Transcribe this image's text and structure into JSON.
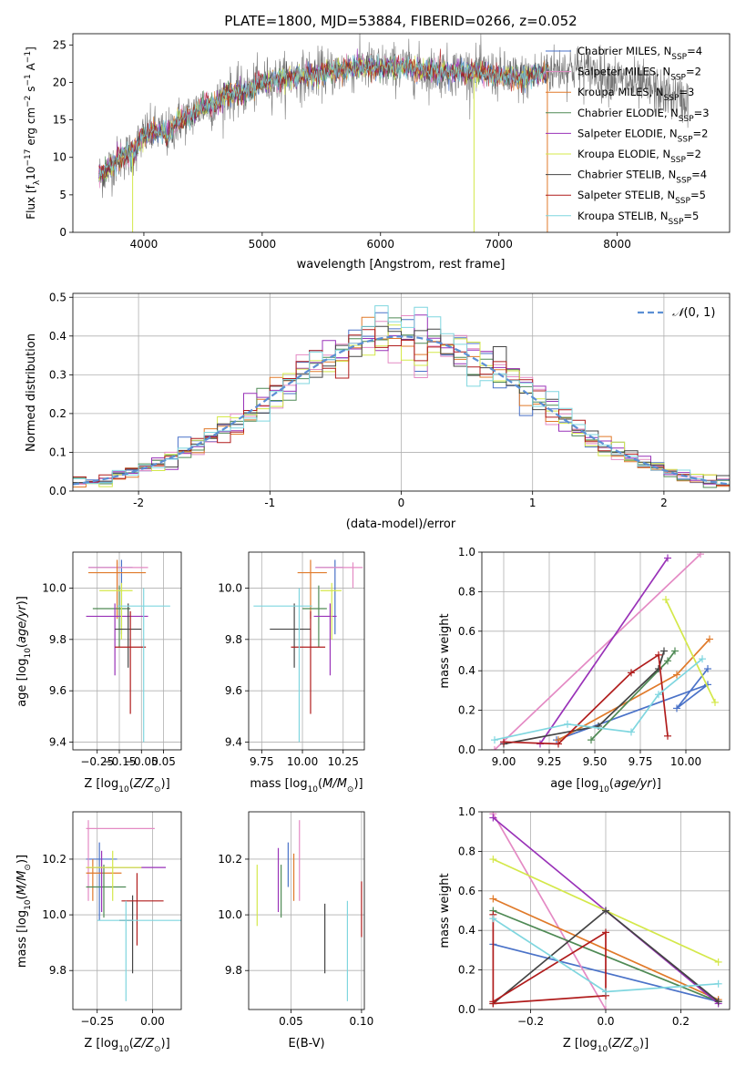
{
  "figure_title": "PLATE=1800, MJD=53884, FIBERID=0266, z=0.052",
  "models": [
    {
      "name": "Chabrier MILES, N$_{SSP}$=4",
      "label_main": "Chabrier MILES, N",
      "label_sub": "SSP",
      "label_tail": "=4",
      "color": "#4a72c8"
    },
    {
      "name": "Salpeter MILES, N$_{SSP}$=2",
      "label_main": "Salpeter MILES, N",
      "label_sub": "SSP",
      "label_tail": "=2",
      "color": "#e48ac4"
    },
    {
      "name": "Kroupa MILES, N$_{SSP}$=3",
      "label_main": "Kroupa MILES, N",
      "label_sub": "SSP",
      "label_tail": "=3",
      "color": "#e07a2a"
    },
    {
      "name": "Chabrier ELODIE, N$_{SSP}$=3",
      "label_main": "Chabrier ELODIE, N",
      "label_sub": "SSP",
      "label_tail": "=3",
      "color": "#4f8a55"
    },
    {
      "name": "Salpeter ELODIE, N$_{SSP}$=2",
      "label_main": "Salpeter ELODIE, N",
      "label_sub": "SSP",
      "label_tail": "=2",
      "color": "#9932b8"
    },
    {
      "name": "Kroupa ELODIE, N$_{SSP}$=2",
      "label_main": "Kroupa ELODIE, N",
      "label_sub": "SSP",
      "label_tail": "=2",
      "color": "#d4e84a"
    },
    {
      "name": "Chabrier STELIB, N$_{SSP}$=4",
      "label_main": "Chabrier STELIB, N",
      "label_sub": "SSP",
      "label_tail": "=4",
      "color": "#444444"
    },
    {
      "name": "Salpeter STELIB, N$_{SSP}$=5",
      "label_main": "Salpeter STELIB, N",
      "label_sub": "SSP",
      "label_tail": "=5",
      "color": "#b01c1c"
    },
    {
      "name": "Kroupa STELIB, N$_{SSP}$=5",
      "label_main": "Kroupa STELIB, N",
      "label_sub": "SSP",
      "label_tail": "=5",
      "color": "#7fd6df"
    }
  ],
  "chart_data": [
    {
      "id": "spectrum",
      "type": "line",
      "title": "PLATE=1800, MJD=53884, FIBERID=0266, z=0.052",
      "xlabel": "wavelength [Angstrom, rest frame]",
      "ylabel_main": "Flux [f",
      "ylabel_tail": "10 erg cm s A ]",
      "xlim": [
        3400,
        8950
      ],
      "ylim": [
        0,
        26.5
      ],
      "xticks": [
        4000,
        5000,
        6000,
        7000,
        8000
      ],
      "yticks": [
        0,
        5,
        10,
        15,
        20,
        25
      ],
      "grid": false,
      "legend_position": "right",
      "data_color": "#777777",
      "continuum": {
        "x": [
          3620,
          3700,
          3800,
          3900,
          4000,
          4100,
          4200,
          4300,
          4400,
          4500,
          4600,
          4700,
          4800,
          4900,
          5000,
          5200,
          5400,
          5600,
          5800,
          6000,
          6200,
          6400,
          6600,
          6800,
          7000,
          7200,
          7400,
          7600,
          7800,
          8000,
          8200,
          8400,
          8600
        ],
        "y": [
          7.5,
          8.5,
          10.0,
          10.5,
          13.0,
          13.5,
          13.0,
          15.0,
          15.5,
          17.0,
          17.0,
          18.5,
          18.5,
          19.0,
          20.0,
          20.5,
          21.0,
          21.5,
          22.0,
          22.0,
          22.0,
          21.5,
          21.5,
          21.5,
          21.0,
          20.5,
          21.5,
          22.0,
          21.5,
          20.5,
          19.5,
          18.5,
          17.5
        ]
      },
      "data_range": [
        3620,
        8600
      ],
      "model_range": [
        3620,
        7420
      ]
    },
    {
      "id": "residual_hist",
      "type": "step",
      "xlabel": "(data-model)/error",
      "ylabel": "Normed distribution",
      "xlim": [
        -2.5,
        2.5
      ],
      "ylim": [
        0,
        0.51
      ],
      "xticks": [
        -2,
        -1,
        0,
        1,
        2
      ],
      "yticks": [
        0.0,
        0.1,
        0.2,
        0.3,
        0.4,
        0.5
      ],
      "grid": true,
      "legend": "$\\mathcal{N}(0,1)$",
      "legend_position": "top-right",
      "normal_color": "#5b8fd4",
      "bin_width": 0.1
    },
    {
      "id": "age_vs_Z",
      "type": "errorbar",
      "xlabel": "Z [log$_{10}$($Z/Z_\\odot$)]",
      "ylabel": "age [log$_{10}$($age/yr$)]",
      "xlim": [
        -0.36,
        0.13
      ],
      "ylim": [
        9.37,
        10.14
      ],
      "xticks": [
        -0.25,
        -0.15,
        -0.05,
        0.05
      ],
      "xtick_labels": [
        "−0.25",
        "−0.15",
        "−0.05",
        "0.05"
      ],
      "yticks": [
        9.4,
        9.6,
        9.8,
        10.0
      ],
      "grid": true,
      "points": [
        {
          "x": -0.14,
          "xerr": [
            0.15,
            0.05
          ],
          "y": 10.08,
          "yerr": [
            0.26,
            0.03
          ]
        },
        {
          "x": -0.16,
          "xerr": [
            0.13,
            0.14
          ],
          "y": 10.08,
          "yerr": [
            0.08,
            0.02
          ]
        },
        {
          "x": -0.16,
          "xerr": [
            0.13,
            0.13
          ],
          "y": 10.06,
          "yerr": [
            0.18,
            0.05
          ]
        },
        {
          "x": -0.15,
          "xerr": [
            0.12,
            0.05
          ],
          "y": 9.92,
          "yerr": [
            0.15,
            0.09
          ]
        },
        {
          "x": -0.17,
          "xerr": [
            0.13,
            0.15
          ],
          "y": 9.89,
          "yerr": [
            0.23,
            0.05
          ]
        },
        {
          "x": -0.14,
          "xerr": [
            0.1,
            0.05
          ],
          "y": 9.99,
          "yerr": [
            0.19,
            0.03
          ]
        },
        {
          "x": -0.11,
          "xerr": [
            0.06,
            0.06
          ],
          "y": 9.84,
          "yerr": [
            0.15,
            0.1
          ]
        },
        {
          "x": -0.1,
          "xerr": [
            0.07,
            0.07
          ],
          "y": 9.77,
          "yerr": [
            0.26,
            0.14
          ]
        },
        {
          "x": -0.04,
          "xerr": [
            0.12,
            0.12
          ],
          "y": 9.93,
          "yerr": [
            0.53,
            0.07
          ]
        }
      ]
    },
    {
      "id": "age_vs_mass",
      "type": "errorbar",
      "xlabel": "mass [log$_{10}$($M/M_\\odot$)]",
      "xlim": [
        9.67,
        10.38
      ],
      "ylim": [
        9.37,
        10.14
      ],
      "xticks": [
        9.75,
        10.0,
        10.25
      ],
      "xtick_labels": [
        "9.75",
        "10.00",
        "10.25"
      ],
      "yticks": [
        9.4,
        9.6,
        9.8,
        10.0
      ],
      "grid": true,
      "points": [
        {
          "x": 10.2,
          "xerr": [
            0.12,
            0.05
          ],
          "y": 10.08,
          "yerr": [
            0.26,
            0.03
          ]
        },
        {
          "x": 10.31,
          "xerr": [
            0.23,
            0.06
          ],
          "y": 10.08,
          "yerr": [
            0.08,
            0.02
          ]
        },
        {
          "x": 10.05,
          "xerr": [
            0.08,
            0.1
          ],
          "y": 10.06,
          "yerr": [
            0.18,
            0.05
          ]
        },
        {
          "x": 10.1,
          "xerr": [
            0.1,
            0.05
          ],
          "y": 9.92,
          "yerr": [
            0.15,
            0.09
          ]
        },
        {
          "x": 10.17,
          "xerr": [
            0.1,
            0.04
          ],
          "y": 9.89,
          "yerr": [
            0.23,
            0.05
          ]
        },
        {
          "x": 10.18,
          "xerr": [
            0.07,
            0.06
          ],
          "y": 9.99,
          "yerr": [
            0.19,
            0.03
          ]
        },
        {
          "x": 9.95,
          "xerr": [
            0.15,
            0.1
          ],
          "y": 9.84,
          "yerr": [
            0.15,
            0.1
          ]
        },
        {
          "x": 10.05,
          "xerr": [
            0.12,
            0.09
          ],
          "y": 9.77,
          "yerr": [
            0.26,
            0.14
          ]
        },
        {
          "x": 9.98,
          "xerr": [
            0.28,
            0.08
          ],
          "y": 9.93,
          "yerr": [
            0.53,
            0.07
          ]
        }
      ]
    },
    {
      "id": "weight_vs_age",
      "type": "line",
      "xlabel": "age [log$_{10}$($age/yr$)]",
      "ylabel": "mass weight",
      "xlim": [
        8.88,
        10.24
      ],
      "ylim": [
        0,
        1.0
      ],
      "xticks": [
        9.0,
        9.25,
        9.5,
        9.75,
        10.0
      ],
      "xtick_labels": [
        "9.00",
        "9.25",
        "9.50",
        "9.75",
        "10.00"
      ],
      "yticks": [
        0.0,
        0.2,
        0.4,
        0.6,
        0.8,
        1.0
      ],
      "grid": true,
      "series": [
        {
          "x": [
            9.29,
            10.12,
            9.95,
            10.12
          ],
          "y": [
            0.05,
            0.33,
            0.21,
            0.41
          ]
        },
        {
          "x": [
            8.95,
            10.08
          ],
          "y": [
            0.0,
            0.99
          ]
        },
        {
          "x": [
            9.3,
            9.95,
            10.13
          ],
          "y": [
            0.05,
            0.38,
            0.56
          ]
        },
        {
          "x": [
            9.48,
            9.9,
            9.94
          ],
          "y": [
            0.05,
            0.45,
            0.5
          ]
        },
        {
          "x": [
            9.2,
            9.9
          ],
          "y": [
            0.03,
            0.97
          ]
        },
        {
          "x": [
            9.89,
            10.16
          ],
          "y": [
            0.76,
            0.24
          ]
        },
        {
          "x": [
            9.0,
            9.52,
            9.85,
            9.88
          ],
          "y": [
            0.03,
            0.12,
            0.41,
            0.5
          ]
        },
        {
          "x": [
            9.0,
            9.3,
            9.7,
            9.85,
            9.9
          ],
          "y": [
            0.04,
            0.03,
            0.39,
            0.48,
            0.07
          ]
        },
        {
          "x": [
            8.95,
            9.35,
            9.7,
            9.85,
            10.09
          ],
          "y": [
            0.05,
            0.13,
            0.09,
            0.28,
            0.46
          ]
        }
      ]
    },
    {
      "id": "mass_vs_Z",
      "type": "errorbar",
      "xlabel": "Z [log$_{10}$($Z/Z_\\odot$)]",
      "ylabel": "mass [log$_{10}$($M/M_\\odot$)]",
      "xlim": [
        -0.36,
        0.13
      ],
      "ylim": [
        9.66,
        10.37
      ],
      "xticks": [
        -0.25,
        0.0
      ],
      "xtick_labels": [
        "−0.25",
        "0.00"
      ],
      "yticks": [
        9.8,
        10.0,
        10.2
      ],
      "grid": true,
      "points": [
        {
          "x": -0.24,
          "xerr": [
            0.06,
            0.08
          ],
          "y": 10.2,
          "yerr": [
            0.22,
            0.06
          ]
        },
        {
          "x": -0.29,
          "xerr": [
            0.01,
            0.3
          ],
          "y": 10.31,
          "yerr": [
            0.26,
            0.03
          ]
        },
        {
          "x": -0.27,
          "xerr": [
            0.03,
            0.13
          ],
          "y": 10.15,
          "yerr": [
            0.1,
            0.05
          ]
        },
        {
          "x": -0.22,
          "xerr": [
            0.08,
            0.1
          ],
          "y": 10.1,
          "yerr": [
            0.11,
            0.08
          ]
        },
        {
          "x": -0.23,
          "xerr": [
            0.07,
            0.29
          ],
          "y": 10.17,
          "yerr": [
            0.16,
            0.06
          ]
        },
        {
          "x": -0.18,
          "xerr": [
            0.12,
            0.13
          ],
          "y": 10.17,
          "yerr": [
            0.12,
            0.06
          ]
        },
        {
          "x": -0.09,
          "xerr": [
            0.06,
            0.0
          ],
          "y": 9.98,
          "yerr": [
            0.19,
            0.09
          ]
        },
        {
          "x": -0.07,
          "xerr": [
            0.07,
            0.12
          ],
          "y": 10.05,
          "yerr": [
            0.16,
            0.1
          ]
        },
        {
          "x": -0.12,
          "xerr": [
            0.13,
            0.25
          ],
          "y": 9.98,
          "yerr": [
            0.29,
            0.07
          ]
        }
      ]
    },
    {
      "id": "mass_vs_ebv",
      "type": "errorbar",
      "xlabel": "E(B-V)",
      "xlim": [
        0.02,
        0.102
      ],
      "ylim": [
        9.66,
        10.37
      ],
      "xticks": [
        0.05,
        0.1
      ],
      "xtick_labels": [
        "0.05",
        "0.10"
      ],
      "yticks": [
        9.8,
        10.0,
        10.2
      ],
      "grid": true,
      "points": [
        {
          "x": 0.048,
          "y": 10.2,
          "yerr": [
            0.1,
            0.06
          ]
        },
        {
          "x": 0.056,
          "y": 10.31,
          "yerr": [
            0.26,
            0.03
          ]
        },
        {
          "x": 0.052,
          "y": 10.15,
          "yerr": [
            0.1,
            0.07
          ]
        },
        {
          "x": 0.043,
          "y": 10.1,
          "yerr": [
            0.11,
            0.08
          ]
        },
        {
          "x": 0.041,
          "y": 10.17,
          "yerr": [
            0.16,
            0.07
          ]
        },
        {
          "x": 0.026,
          "y": 10.08,
          "yerr": [
            0.12,
            0.1
          ]
        },
        {
          "x": 0.074,
          "y": 9.98,
          "yerr": [
            0.19,
            0.06
          ]
        },
        {
          "x": 0.1,
          "y": 10.02,
          "yerr": [
            0.1,
            0.1
          ]
        },
        {
          "x": 0.09,
          "y": 9.89,
          "yerr": [
            0.2,
            0.16
          ]
        }
      ]
    },
    {
      "id": "weight_vs_Z",
      "type": "line",
      "xlabel": "Z [log$_{10}$($Z/Z_\\odot$)]",
      "ylabel": "mass weight",
      "xlim": [
        -0.33,
        0.33
      ],
      "ylim": [
        0,
        1.0
      ],
      "xticks": [
        -0.2,
        0.0,
        0.2
      ],
      "xtick_labels": [
        "−0.2",
        "0.0",
        "0.2"
      ],
      "yticks": [
        0.0,
        0.2,
        0.4,
        0.6,
        0.8,
        1.0
      ],
      "grid": true,
      "series": [
        {
          "x": [
            -0.3,
            0.3
          ],
          "y": [
            0.33,
            0.04
          ]
        },
        {
          "x": [
            -0.3,
            0.0
          ],
          "y": [
            0.99,
            0.0
          ]
        },
        {
          "x": [
            -0.3,
            0.3
          ],
          "y": [
            0.56,
            0.05
          ]
        },
        {
          "x": [
            -0.3,
            0.3
          ],
          "y": [
            0.5,
            0.04
          ]
        },
        {
          "x": [
            -0.3,
            0.0,
            0.3
          ],
          "y": [
            0.97,
            0.5,
            0.03
          ]
        },
        {
          "x": [
            -0.3,
            0.3
          ],
          "y": [
            0.76,
            0.24
          ]
        },
        {
          "x": [
            -0.3,
            0.0,
            0.3
          ],
          "y": [
            0.03,
            0.5,
            0.04
          ]
        },
        {
          "x": [
            -0.3,
            -0.3,
            0.0,
            0.0,
            -0.3
          ],
          "y": [
            0.48,
            0.04,
            0.39,
            0.07,
            0.03
          ]
        },
        {
          "x": [
            -0.3,
            0.0,
            0.3
          ],
          "y": [
            0.46,
            0.09,
            0.13
          ]
        }
      ]
    }
  ]
}
